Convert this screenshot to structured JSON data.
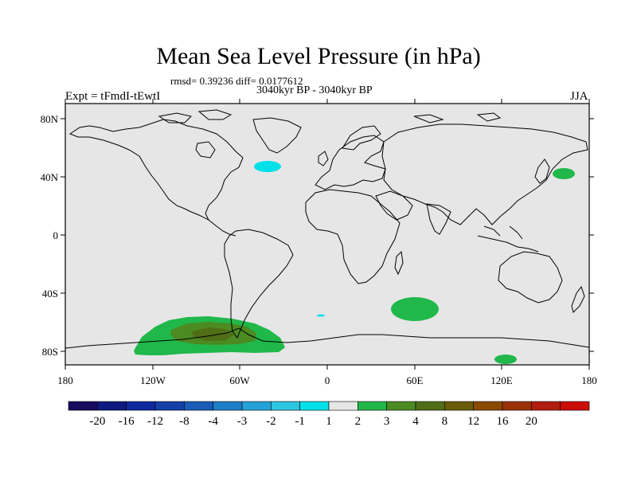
{
  "title": "Mean Sea Level Pressure (in hPa)",
  "stats_text": "rmsd= 0.39236 diff= 0.0177612",
  "period": "3040kyr BP - 3040kyr BP",
  "experiment": "Expt = tFmdI-tEwtI",
  "season": "JJA",
  "lat_labels": [
    "80N",
    "40N",
    "0",
    "40S",
    "80S"
  ],
  "lon_labels": [
    "180",
    "120W",
    "60W",
    "0",
    "60E",
    "120E",
    "180"
  ],
  "colorbar": {
    "labels": [
      "-20",
      "-16",
      "-12",
      "-8",
      "-4",
      "-3",
      "-2",
      "-1",
      "1",
      "2",
      "3",
      "4",
      "8",
      "12",
      "16",
      "20"
    ],
    "colors": [
      "#1a0a5e",
      "#0f1a80",
      "#102a9e",
      "#1440a8",
      "#1a5cb8",
      "#1f7ec8",
      "#24a2d6",
      "#2dc6e0",
      "#00e0e8",
      "#e6e6e6",
      "#20b84a",
      "#4c8a22",
      "#506e16",
      "#6a5c08",
      "#8a4a04",
      "#9a3208",
      "#b01e10",
      "#cc0e08"
    ]
  },
  "map_colors": {
    "background": "#e6e6e6",
    "coast": "#000000",
    "positive_1_2": "#20b84a",
    "positive_2_3": "#4c8a22",
    "positive_3_4": "#506e16",
    "negative_m2_m1": "#00e0e8"
  }
}
